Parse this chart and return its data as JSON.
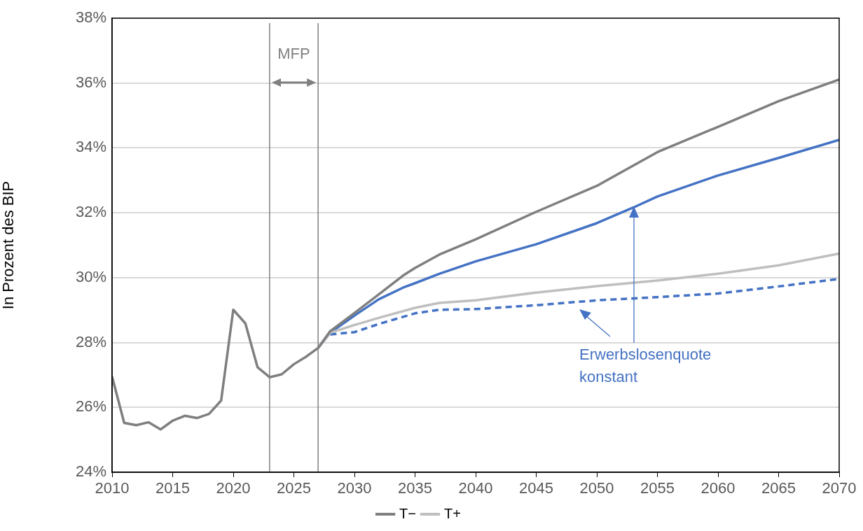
{
  "chart_data": {
    "type": "line",
    "ylabel": "In Prozent des BIP",
    "xlim": [
      2010,
      2070
    ],
    "xticks": [
      2010,
      2015,
      2020,
      2025,
      2030,
      2035,
      2040,
      2045,
      2050,
      2055,
      2060,
      2065,
      2070
    ],
    "ylim": [
      24,
      38
    ],
    "yticks": [
      {
        "value": 24,
        "label": "24%"
      },
      {
        "value": 26,
        "label": "26%"
      },
      {
        "value": 28,
        "label": "28%"
      },
      {
        "value": 30,
        "label": "30%"
      },
      {
        "value": 32,
        "label": "32%"
      },
      {
        "value": 34,
        "label": "34%"
      },
      {
        "value": 36,
        "label": "36%"
      },
      {
        "value": 38,
        "label": "38%"
      }
    ],
    "grid": "y",
    "legend": "bottom",
    "marker": "none",
    "series": [
      {
        "name": "T−",
        "color": "#7f7f7f",
        "x": [
          2010,
          2011,
          2012,
          2013,
          2014,
          2015,
          2016,
          2017,
          2018,
          2019,
          2020,
          2021,
          2022,
          2023,
          2024,
          2025,
          2026,
          2027,
          2028,
          2030,
          2032,
          2034,
          2035,
          2037,
          2040,
          2045,
          2050,
          2055,
          2060,
          2065,
          2070
        ],
        "values": [
          26.95,
          25.52,
          25.45,
          25.54,
          25.32,
          25.59,
          25.74,
          25.67,
          25.8,
          26.21,
          29.01,
          28.59,
          27.24,
          26.93,
          27.02,
          27.33,
          27.56,
          27.83,
          28.35,
          28.91,
          29.48,
          30.06,
          30.3,
          30.71,
          31.18,
          32.03,
          32.83,
          33.87,
          34.65,
          35.44,
          36.11
        ]
      },
      {
        "name": "T+",
        "color": "#bfbfbf",
        "x": [
          2027,
          2028,
          2030,
          2032,
          2035,
          2037,
          2040,
          2045,
          2050,
          2055,
          2060,
          2065,
          2070
        ],
        "values": [
          27.83,
          28.3,
          28.54,
          28.76,
          29.07,
          29.22,
          29.3,
          29.54,
          29.74,
          29.91,
          30.12,
          30.38,
          30.74
        ]
      },
      {
        "color": "#4472c4",
        "x": [
          2027,
          2028,
          2030,
          2032,
          2034,
          2035,
          2037,
          2040,
          2045,
          2050,
          2053,
          2055,
          2060,
          2065,
          2070
        ],
        "values": [
          27.83,
          28.3,
          28.83,
          29.33,
          29.69,
          29.83,
          30.12,
          30.5,
          31.03,
          31.68,
          32.16,
          32.5,
          33.15,
          33.69,
          34.25
        ]
      },
      {
        "color": "#4472c4",
        "line_style": "dashed",
        "x": [
          2028,
          2030,
          2032,
          2035,
          2037,
          2040,
          2045,
          2050,
          2055,
          2060,
          2065,
          2070
        ],
        "values": [
          28.25,
          28.32,
          28.57,
          28.9,
          29.01,
          29.03,
          29.15,
          29.3,
          29.4,
          29.51,
          29.73,
          29.96
        ]
      }
    ],
    "ref_lines": [
      {
        "axis": "x",
        "value": 2023,
        "label": "MFP",
        "color": "#808080"
      },
      {
        "axis": "x",
        "value": 2027,
        "color": "#808080"
      }
    ],
    "annotations": [
      "Erwerbslosenquote konstant"
    ]
  }
}
